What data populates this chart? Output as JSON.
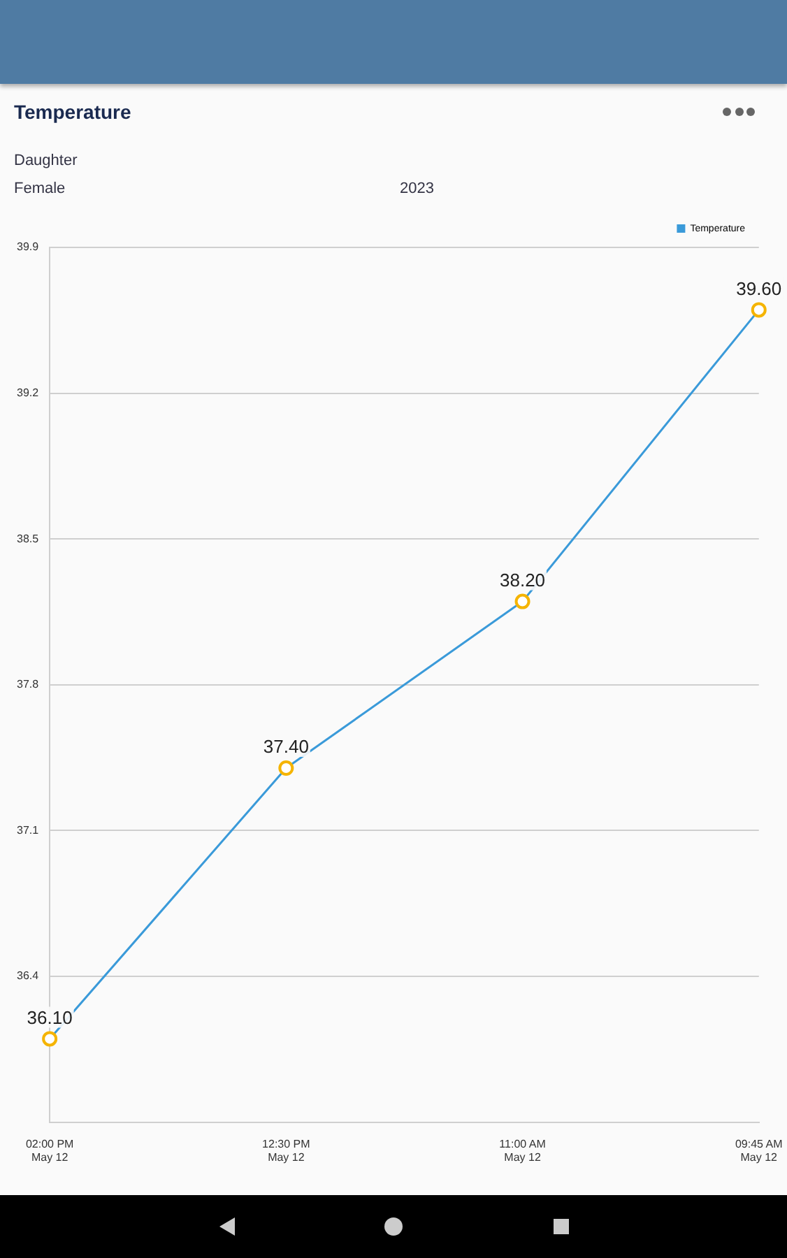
{
  "chart_data": {
    "type": "line",
    "title": "Temperature",
    "subtitle": "Daughter",
    "annotations": [
      "Female",
      "2023"
    ],
    "categories": [
      "02:00 PM\nMay 12",
      "12:30 PM\nMay 12",
      "11:00 AM\nMay 12",
      "09:45 AM\nMay 12"
    ],
    "series": [
      {
        "name": "Temperature",
        "color": "#3a9ad9",
        "colors": [
          "#f5b400",
          "#f5b400",
          "#f5b400",
          "#f5b400"
        ],
        "values": [
          36.1,
          37.4,
          38.2,
          39.6
        ],
        "value_labels": [
          "36.10",
          "37.40",
          "38.20",
          "39.60"
        ]
      }
    ],
    "ylim": [
      35.7,
      39.9
    ],
    "yticks": [
      36.4,
      37.1,
      37.8,
      38.5,
      39.2,
      39.9
    ],
    "grid": "y",
    "legend": "top right",
    "marker": "circle",
    "line_style": "solid"
  }
}
